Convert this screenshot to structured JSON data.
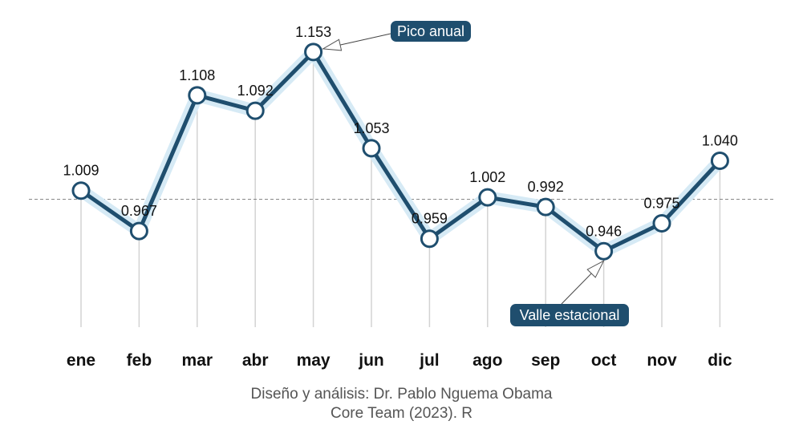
{
  "chart_data": {
    "type": "line",
    "categories": [
      "ene",
      "feb",
      "mar",
      "abr",
      "may",
      "jun",
      "jul",
      "ago",
      "sep",
      "oct",
      "nov",
      "dic"
    ],
    "values": [
      1.009,
      0.967,
      1.108,
      1.092,
      1.153,
      1.053,
      0.959,
      1.002,
      0.992,
      0.946,
      0.975,
      1.04
    ],
    "value_labels": [
      "1.009",
      "0.967",
      "1.108",
      "1.092",
      "1.153",
      "1.053",
      "0.959",
      "1.002",
      "0.992",
      "0.946",
      "0.975",
      "1.040"
    ],
    "reference_line": 1.0,
    "ylim": [
      0.85,
      1.18
    ],
    "annotations": [
      {
        "text": "Pico anual",
        "category": "may"
      },
      {
        "text": "Valle estacional",
        "category": "oct"
      }
    ],
    "colors": {
      "line": "#1f4e6e",
      "halo": "#d6eaf5",
      "point_fill": "#ffffff",
      "ref_line": "#888888",
      "grid": "#d3d3d3"
    }
  },
  "caption": {
    "line1": "Diseño y análisis: Dr. Pablo Nguema Obama",
    "line2": "Core Team (2023). R"
  }
}
